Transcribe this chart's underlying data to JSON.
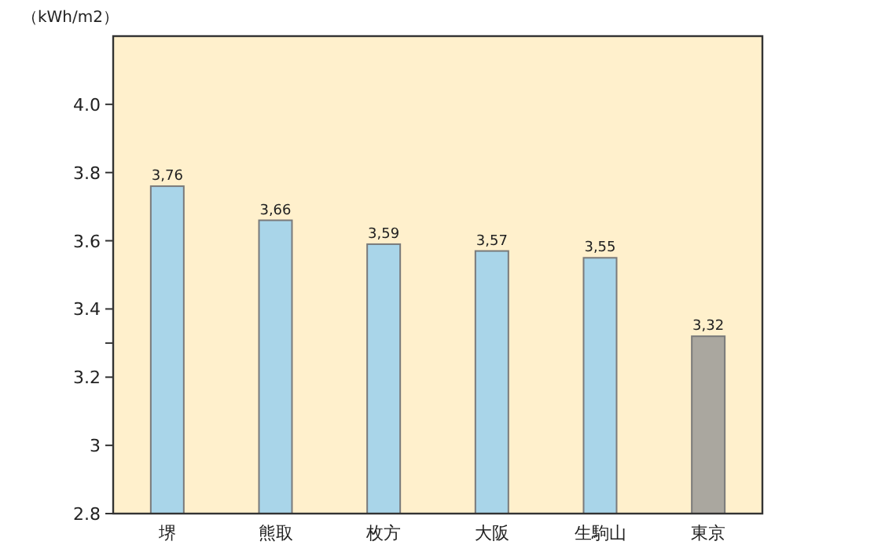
{
  "chart_data": {
    "type": "bar",
    "ylabel": "（kWh/m2）",
    "categories": [
      "堺",
      "熊取",
      "枚方",
      "大阪",
      "生駒山",
      "東京"
    ],
    "values": [
      3.76,
      3.66,
      3.59,
      3.57,
      3.55,
      3.32
    ],
    "colors": [
      "#a9d5e9",
      "#a9d5e9",
      "#a9d5e9",
      "#a9d5e9",
      "#a9d5e9",
      "#aaa79f"
    ],
    "value_labels": [
      "3,76",
      "3,66",
      "3,59",
      "3,57",
      "3,55",
      "3,32"
    ],
    "ylim": [
      2.8,
      4.2
    ],
    "yticks": [
      2.8,
      3,
      {
        "value": 3.2,
        "label": "3.2"
      },
      {
        "value": 3.3,
        "label": null
      },
      3.4,
      3.6,
      3.8,
      {
        "value": 4.0,
        "label": "4.0"
      }
    ],
    "grid": false
  }
}
